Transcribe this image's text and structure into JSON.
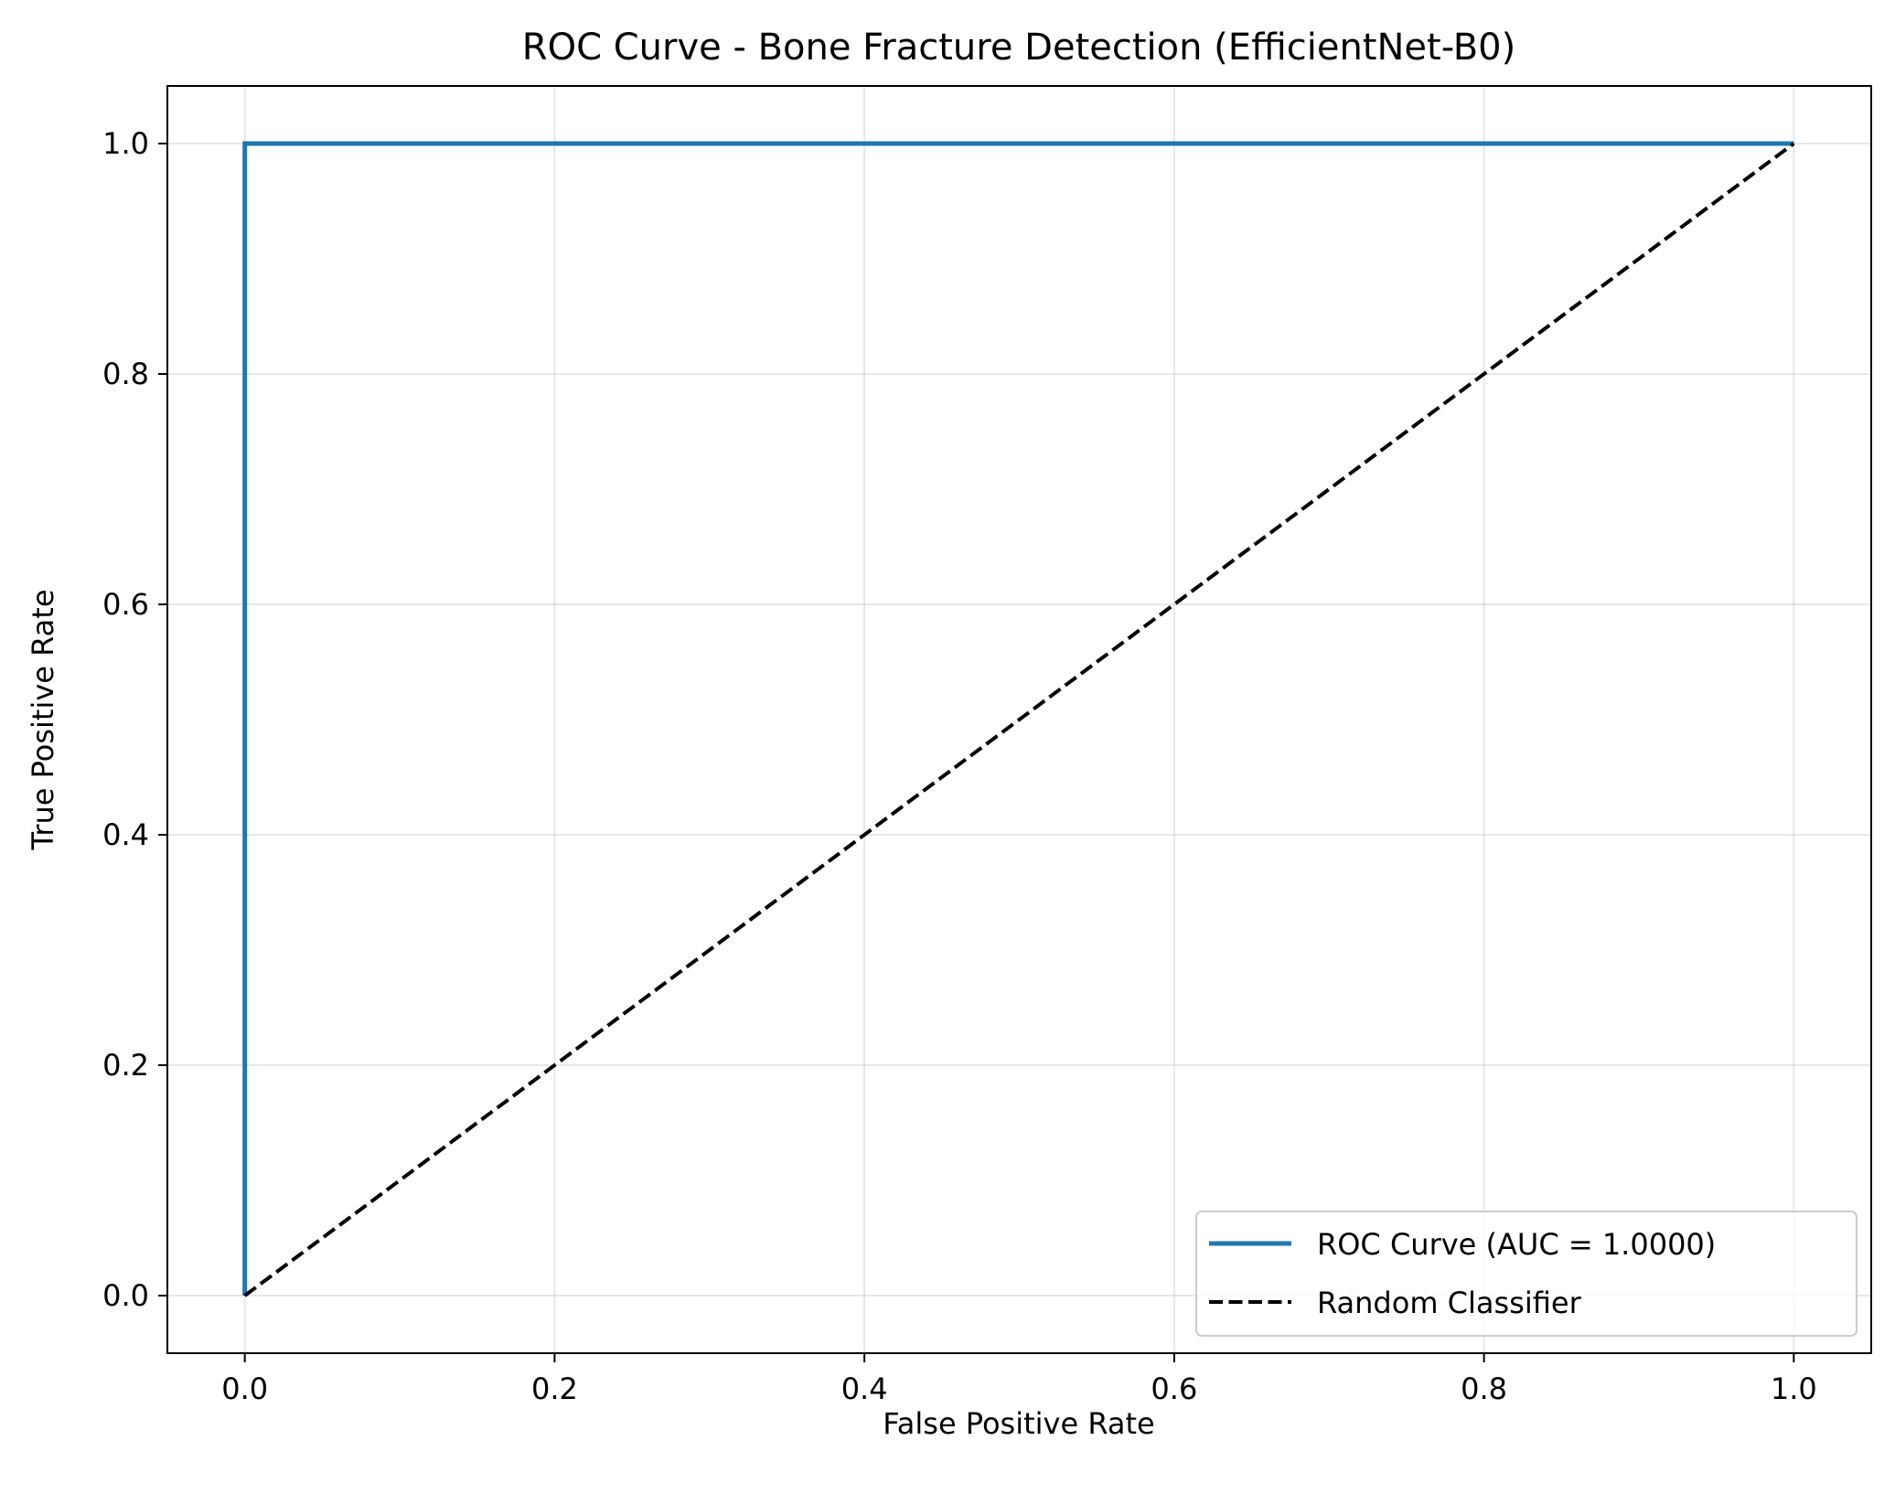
{
  "chart_data": {
    "type": "line",
    "title": "ROC Curve - Bone Fracture Detection (EfficientNet-B0)",
    "xlabel": "False Positive Rate",
    "ylabel": "True Positive Rate",
    "xlim": [
      -0.05,
      1.05
    ],
    "ylim": [
      -0.05,
      1.05
    ],
    "xticks": [
      0.0,
      0.2,
      0.4,
      0.6,
      0.8,
      1.0
    ],
    "yticks": [
      0.0,
      0.2,
      0.4,
      0.6,
      0.8,
      1.0
    ],
    "xtick_labels": [
      "0.0",
      "0.2",
      "0.4",
      "0.6",
      "0.8",
      "1.0"
    ],
    "ytick_labels": [
      "0.0",
      "0.2",
      "0.4",
      "0.6",
      "0.8",
      "1.0"
    ],
    "grid": true,
    "legend_position": "lower-right",
    "series": [
      {
        "name": "ROC Curve (AUC = 1.0000)",
        "x": [
          0.0,
          0.0,
          1.0
        ],
        "y": [
          0.0,
          1.0,
          1.0
        ],
        "color": "#1f77b4",
        "style": "solid"
      },
      {
        "name": "Random Classifier",
        "x": [
          0.0,
          1.0
        ],
        "y": [
          0.0,
          1.0
        ],
        "color": "#000000",
        "style": "dashed"
      }
    ]
  }
}
